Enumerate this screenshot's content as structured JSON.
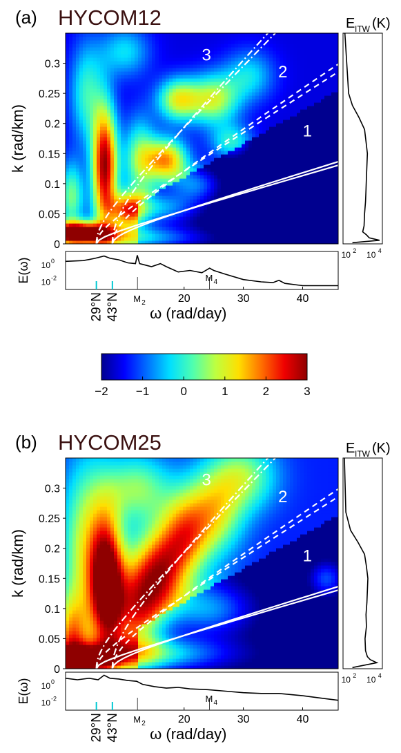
{
  "colormap": [
    "#00008f",
    "#0000ff",
    "#006fff",
    "#00dfff",
    "#4fffaf",
    "#bfff3f",
    "#ffdf00",
    "#ff6f00",
    "#ef0000",
    "#8f0000"
  ],
  "line_color": "#ffffff",
  "cyan_tick_color": "#00c8d2",
  "chart_data": [
    {
      "type": "heatmap",
      "panel_label": "(a)",
      "title": "HYCOM12",
      "xlabel": "ω (rad/day)",
      "ylabel": "k (rad/km)",
      "xlim": [
        0,
        46
      ],
      "ylim": [
        0,
        0.35
      ],
      "y_ticks": [
        "0",
        "0.05",
        "0.1",
        "0.15",
        "0.2",
        "0.25",
        "0.3"
      ],
      "x_ticks": [
        "20",
        "30",
        "40"
      ],
      "x_special_ticks": [
        "29°N",
        "43°N"
      ],
      "x_special_values": [
        5.2,
        7.9
      ],
      "tidal_labels": [
        "M",
        "M"
      ],
      "tidal_subscripts": [
        "2",
        "4"
      ],
      "tidal_values": [
        12.14,
        24.28
      ],
      "mode_labels": [
        "1",
        "2",
        "3"
      ],
      "mode_speeds": [
        3.5,
        1.6,
        1.0
      ],
      "spectrum_ylabel": "E(ω)",
      "spectrum_yticks": [
        "10",
        "10"
      ],
      "spectrum_yexponents": [
        "-2",
        "0"
      ],
      "side_title": "E",
      "side_title_sub": "ITW",
      "side_title_suffix": "(K)",
      "side_xticks": [
        "10",
        "10"
      ],
      "side_xexponents": [
        "2",
        "4"
      ],
      "blobs": [
        {
          "w": 6.6,
          "k": 0.13,
          "sw": 1.5,
          "sk": 0.07,
          "a": 4.5
        },
        {
          "w": 2.0,
          "k": 0.02,
          "sw": 3.5,
          "sk": 0.012,
          "a": 4.2
        },
        {
          "w": 8.5,
          "k": 0.01,
          "sw": 10,
          "sk": 0.015,
          "a": 2.5
        },
        {
          "w": 10.5,
          "k": 0.055,
          "sw": 2,
          "sk": 0.02,
          "a": 2.5
        },
        {
          "w": 12.5,
          "k": 0.14,
          "sw": 2,
          "sk": 0.05,
          "a": 2.0
        },
        {
          "w": 17,
          "k": 0.14,
          "sw": 2.5,
          "sk": 0.025,
          "a": 3.2
        },
        {
          "w": 19,
          "k": 0.24,
          "sw": 2.5,
          "sk": 0.025,
          "a": 2.5
        },
        {
          "w": 25,
          "k": 0.24,
          "sw": 3,
          "sk": 0.03,
          "a": 2.4
        },
        {
          "w": 22,
          "k": 0.1,
          "sw": 3,
          "sk": 0.02,
          "a": 1.6
        },
        {
          "w": 15.5,
          "k": 0.06,
          "sw": 5,
          "sk": 0.02,
          "a": 2.0
        },
        {
          "w": 28,
          "k": 0.17,
          "sw": 2.5,
          "sk": 0.02,
          "a": 1.5
        },
        {
          "w": 31,
          "k": 0.28,
          "sw": 3,
          "sk": 0.03,
          "a": 1.3
        },
        {
          "w": 3.5,
          "k": 0.25,
          "sw": 2,
          "sk": 0.06,
          "a": 1.6
        },
        {
          "w": 1.0,
          "k": 0.08,
          "sw": 1.5,
          "sk": 0.04,
          "a": 2.0
        },
        {
          "w": 10,
          "k": 0.32,
          "sw": 3,
          "sk": 0.03,
          "a": 1.3
        }
      ],
      "blob_base": -1.6,
      "spectrum_line": [
        [
          0,
          1.2
        ],
        [
          3,
          1.3
        ],
        [
          5,
          1.6
        ],
        [
          6.5,
          1.9
        ],
        [
          7.5,
          1.6
        ],
        [
          9,
          1.4
        ],
        [
          10.5,
          1.0
        ],
        [
          11.8,
          0.9
        ],
        [
          12.1,
          2.0
        ],
        [
          12.5,
          0.9
        ],
        [
          13,
          0.8
        ],
        [
          14.5,
          0.5
        ],
        [
          16,
          0.9
        ],
        [
          17,
          0.5
        ],
        [
          19,
          -0.2
        ],
        [
          21,
          0
        ],
        [
          23,
          -0.3
        ],
        [
          24.3,
          0.3
        ],
        [
          25,
          0
        ],
        [
          27,
          -0.5
        ],
        [
          30,
          -1.2
        ],
        [
          33,
          -1.5
        ],
        [
          35,
          -1.6
        ],
        [
          36,
          -1.3
        ],
        [
          37,
          -1.7
        ],
        [
          40,
          -2.0
        ],
        [
          46,
          -2.0
        ]
      ],
      "side_profile": [
        [
          0.002,
          1.0
        ],
        [
          0.006,
          3.9
        ],
        [
          0.01,
          2.8
        ],
        [
          0.015,
          2.5
        ],
        [
          0.02,
          2.1
        ],
        [
          0.03,
          2.25
        ],
        [
          0.05,
          2.3
        ],
        [
          0.07,
          2.4
        ],
        [
          0.09,
          2.45
        ],
        [
          0.11,
          2.5
        ],
        [
          0.13,
          2.55
        ],
        [
          0.15,
          2.6
        ],
        [
          0.17,
          2.45
        ],
        [
          0.19,
          2.3
        ],
        [
          0.21,
          1.7
        ],
        [
          0.23,
          1.0
        ],
        [
          0.25,
          0.6
        ],
        [
          0.35,
          0.2
        ]
      ]
    },
    {
      "type": "heatmap",
      "panel_label": "(b)",
      "title": "HYCOM25",
      "xlabel": "ω (rad/day)",
      "ylabel": "k (rad/km)",
      "xlim": [
        0,
        46
      ],
      "ylim": [
        0,
        0.35
      ],
      "y_ticks": [
        "0",
        "0.05",
        "0.1",
        "0.15",
        "0.2",
        "0.25",
        "0.3"
      ],
      "x_ticks": [
        "20",
        "30",
        "40"
      ],
      "x_special_ticks": [
        "29°N",
        "43°N"
      ],
      "x_special_values": [
        5.2,
        7.9
      ],
      "tidal_labels": [
        "M",
        "M"
      ],
      "tidal_subscripts": [
        "2",
        "4"
      ],
      "tidal_values": [
        12.14,
        24.28
      ],
      "mode_labels": [
        "1",
        "2",
        "3"
      ],
      "mode_speeds": [
        3.5,
        1.6,
        1.0
      ],
      "spectrum_ylabel": "E(ω)",
      "spectrum_yticks": [
        "10",
        "10"
      ],
      "spectrum_yexponents": [
        "-2",
        "0"
      ],
      "side_title": "E",
      "side_title_sub": "ITW",
      "side_title_suffix": "(K)",
      "side_xticks": [
        "10",
        "10"
      ],
      "side_xexponents": [
        "2",
        "4"
      ],
      "blobs": [
        {
          "w": 7.0,
          "k": 0.14,
          "sw": 2.0,
          "sk": 0.08,
          "a": 4.2
        },
        {
          "w": 2.5,
          "k": 0.015,
          "sw": 3.5,
          "sk": 0.012,
          "a": 4.5
        },
        {
          "w": 3.5,
          "k": 0.2,
          "sw": 3,
          "sk": 0.1,
          "a": 2.2
        },
        {
          "w": 1.0,
          "k": 0.05,
          "sw": 2,
          "sk": 0.05,
          "a": 2.6
        },
        {
          "w": 12,
          "k": 0.1,
          "sw": 3,
          "sk": 0.06,
          "a": 3.1
        },
        {
          "w": 16,
          "k": 0.16,
          "sw": 3,
          "sk": 0.05,
          "a": 3.0
        },
        {
          "w": 20,
          "k": 0.22,
          "sw": 3,
          "sk": 0.05,
          "a": 2.6
        },
        {
          "w": 25,
          "k": 0.26,
          "sw": 3.5,
          "sk": 0.05,
          "a": 2.2
        },
        {
          "w": 30,
          "k": 0.32,
          "sw": 4,
          "sk": 0.04,
          "a": 1.8
        },
        {
          "w": 12,
          "k": 0.025,
          "sw": 10,
          "sk": 0.02,
          "a": 2.4
        },
        {
          "w": 24,
          "k": 0.1,
          "sw": 5,
          "sk": 0.03,
          "a": 1.6
        },
        {
          "w": 44,
          "k": 0.15,
          "sw": 2,
          "sk": 0.02,
          "a": 1.2
        },
        {
          "w": 12,
          "k": 0.3,
          "sw": 4,
          "sk": 0.04,
          "a": 1.8
        }
      ],
      "blob_base": -1.3,
      "spectrum_line": [
        [
          0,
          1.7
        ],
        [
          2,
          1.5
        ],
        [
          4,
          1.7
        ],
        [
          5.5,
          1.5
        ],
        [
          6.5,
          2.1
        ],
        [
          7.5,
          1.7
        ],
        [
          9,
          1.6
        ],
        [
          10.5,
          1.4
        ],
        [
          12,
          1.3
        ],
        [
          13,
          0.9
        ],
        [
          15,
          0.6
        ],
        [
          17,
          0.4
        ],
        [
          19,
          0.5
        ],
        [
          21,
          0.3
        ],
        [
          24,
          0.2
        ],
        [
          27,
          0.0
        ],
        [
          30,
          -0.2
        ],
        [
          33,
          -0.3
        ],
        [
          36,
          -0.3
        ],
        [
          40,
          -0.6
        ],
        [
          43,
          -0.9
        ],
        [
          46,
          -1.2
        ]
      ],
      "side_profile": [
        [
          0.002,
          1.0
        ],
        [
          0.01,
          3.6
        ],
        [
          0.015,
          2.9
        ],
        [
          0.02,
          2.6
        ],
        [
          0.03,
          2.4
        ],
        [
          0.05,
          2.35
        ],
        [
          0.07,
          2.5
        ],
        [
          0.09,
          2.45
        ],
        [
          0.11,
          2.55
        ],
        [
          0.13,
          2.6
        ],
        [
          0.15,
          2.65
        ],
        [
          0.17,
          2.5
        ],
        [
          0.19,
          2.3
        ],
        [
          0.21,
          1.6
        ],
        [
          0.23,
          0.8
        ],
        [
          0.26,
          0.3
        ],
        [
          0.35,
          0.15
        ]
      ]
    }
  ],
  "colorbar": {
    "ticks": [
      "−2",
      "−1",
      "0",
      "1",
      "2",
      "3"
    ],
    "min": -2,
    "max": 3
  }
}
